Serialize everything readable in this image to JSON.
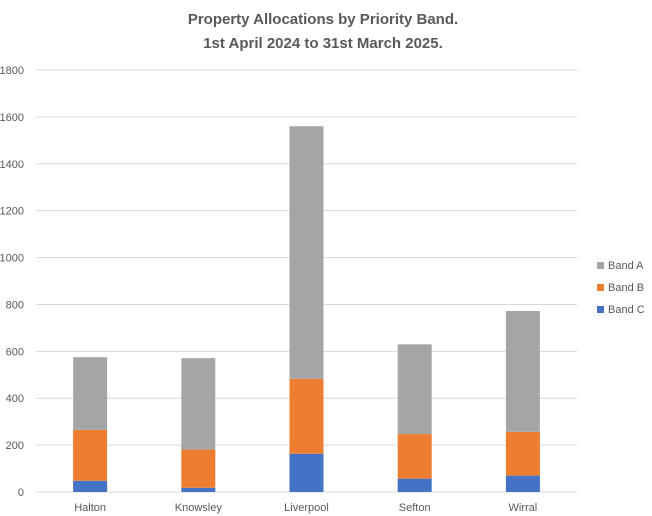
{
  "chart_data": {
    "type": "bar",
    "stacked": true,
    "title": [
      "Property Allocations by Priority Band.",
      "1st April 2024 to 31st March 2025."
    ],
    "xlabel": "",
    "ylabel": "",
    "categories": [
      "Halton",
      "Knowsley",
      "Liverpool",
      "Sefton",
      "Wirral"
    ],
    "series": [
      {
        "name": "Band C",
        "color": "#4472C4",
        "values": [
          48,
          18,
          163,
          57,
          70
        ]
      },
      {
        "name": "Band B",
        "color": "#ED7D31",
        "values": [
          217,
          163,
          320,
          190,
          187
        ]
      },
      {
        "name": "Band A",
        "color": "#A5A5A5",
        "values": [
          310,
          390,
          1077,
          383,
          515
        ]
      }
    ],
    "ylim": [
      0,
      1800
    ],
    "yticks": [
      "0",
      "200",
      "400",
      "600",
      "800",
      "1000",
      "1200",
      "1400",
      "1600",
      "1800"
    ],
    "grid": true,
    "legend_position": "right",
    "legend_order": [
      "Band A",
      "Band B",
      "Band C"
    ]
  }
}
